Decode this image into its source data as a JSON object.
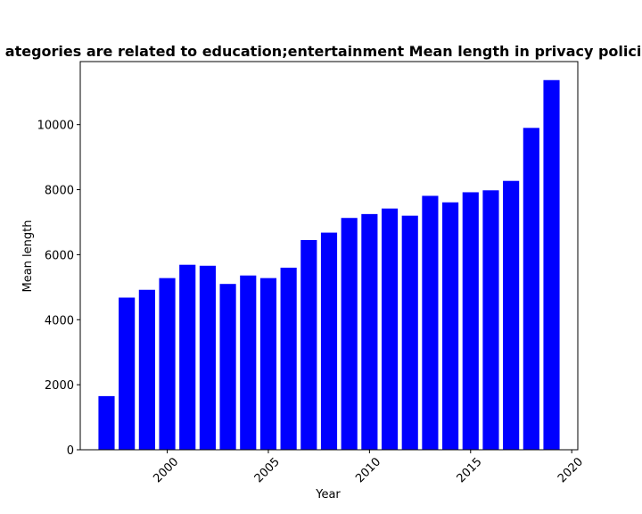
{
  "chart_data": {
    "type": "bar",
    "title": "ategories are related to education;entertainment Mean length in privacy policie",
    "xlabel": "Year",
    "ylabel": "Mean length",
    "x": [
      1997,
      1998,
      1999,
      2000,
      2001,
      2002,
      2003,
      2004,
      2005,
      2006,
      2007,
      2008,
      2009,
      2010,
      2011,
      2012,
      2013,
      2014,
      2015,
      2016,
      2017,
      2018,
      2019
    ],
    "values": [
      1650,
      4680,
      4920,
      5280,
      5690,
      5660,
      5100,
      5360,
      5280,
      5600,
      6450,
      6680,
      7130,
      7250,
      7420,
      7200,
      7810,
      7610,
      7920,
      7980,
      8270,
      9900,
      11370
    ],
    "xlim": [
      1995.7,
      2020.3
    ],
    "ylim": [
      0,
      11940
    ],
    "xticks": [
      "2000",
      "2005",
      "2010",
      "2015",
      "2020"
    ],
    "yticks": [
      "0",
      "2000",
      "4000",
      "6000",
      "8000",
      "10000"
    ],
    "bar_color": "#0000ff",
    "grid": false,
    "legend": "none"
  }
}
